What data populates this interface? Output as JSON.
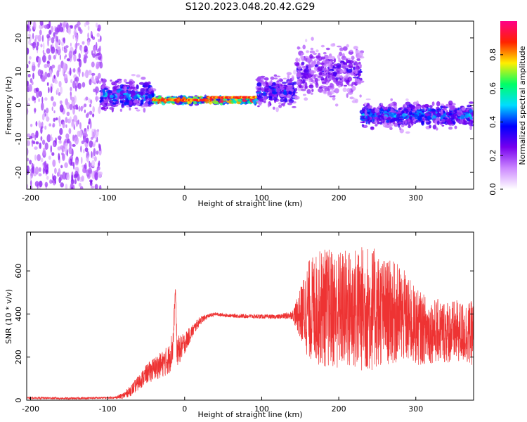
{
  "title": "S120.2023.048.20.42.G29",
  "colors": {
    "snr_line": "#ee3333",
    "colormap": [
      "#ffffff",
      "#cc88ff",
      "#7700ee",
      "#0000ff",
      "#00ddff",
      "#00ff66",
      "#ffee00",
      "#ff2200",
      "#ff0088"
    ]
  },
  "chart_data": [
    {
      "type": "heatmap",
      "title": "",
      "xlabel": "Height of straight line (km)",
      "ylabel": "Frequency (Hz)",
      "xlim": [
        -205,
        375
      ],
      "ylim": [
        -25,
        25
      ],
      "xticks": [
        -200,
        -100,
        0,
        100,
        200,
        300
      ],
      "yticks": [
        -20,
        -10,
        0,
        10,
        20
      ],
      "grid": false,
      "colorbar": {
        "label": "Normalized spectral amplitude",
        "range": [
          0,
          1
        ],
        "ticks": [
          0.0,
          0.2,
          0.4,
          0.6,
          0.8
        ]
      },
      "features": [
        {
          "x_range": [
            -205,
            -108
          ],
          "description": "broadband low-amplitude noise across all frequencies",
          "amplitude": 0.2
        },
        {
          "x_range": [
            -108,
            -40
          ],
          "freq_center": 3,
          "freq_spread": 5,
          "amplitude": 0.45
        },
        {
          "x_range": [
            -40,
            95
          ],
          "freq_center": 1.5,
          "freq_spread": 1,
          "amplitude": 0.9
        },
        {
          "x_range": [
            95,
            145
          ],
          "freq_center": 4,
          "freq_spread": 5,
          "amplitude": 0.4
        },
        {
          "x_range": [
            145,
            230
          ],
          "freq_center": 10,
          "freq_spread": 9,
          "amplitude": 0.3
        },
        {
          "x_range": [
            230,
            375
          ],
          "freq_center": -3,
          "freq_spread": 4,
          "amplitude": 0.45
        }
      ]
    },
    {
      "type": "line",
      "title": "",
      "xlabel": "Height of straight line (km)",
      "ylabel": "SNR (10 * v/v)",
      "xlim": [
        -205,
        375
      ],
      "ylim": [
        0,
        780
      ],
      "xticks": [
        -200,
        -100,
        0,
        100,
        200,
        300
      ],
      "yticks": [
        0,
        200,
        400,
        600
      ],
      "grid": false,
      "series": [
        {
          "x": [
            -205,
            -180,
            -150,
            -120,
            -90,
            -80,
            -70,
            -60,
            -50,
            -40,
            -30,
            -20,
            -15,
            -12,
            -10,
            -5,
            0,
            10,
            20,
            30,
            40,
            50,
            60,
            80,
            100,
            120,
            140,
            150,
            160,
            180,
            200,
            220,
            240,
            260,
            280,
            300,
            320,
            340,
            360,
            375
          ],
          "y": [
            10,
            10,
            8,
            10,
            12,
            20,
            45,
            80,
            120,
            145,
            165,
            190,
            260,
            520,
            230,
            240,
            265,
            320,
            370,
            390,
            400,
            395,
            392,
            390,
            388,
            387,
            395,
            400,
            420,
            430,
            420,
            420,
            425,
            410,
            400,
            340,
            320,
            320,
            315,
            310
          ],
          "spread": [
            5,
            5,
            5,
            5,
            5,
            15,
            25,
            35,
            45,
            55,
            60,
            70,
            90,
            10,
            80,
            60,
            50,
            30,
            20,
            10,
            8,
            8,
            8,
            10,
            10,
            10,
            20,
            120,
            230,
            280,
            280,
            290,
            300,
            250,
            230,
            180,
            150,
            150,
            145,
            150
          ]
        }
      ]
    }
  ]
}
